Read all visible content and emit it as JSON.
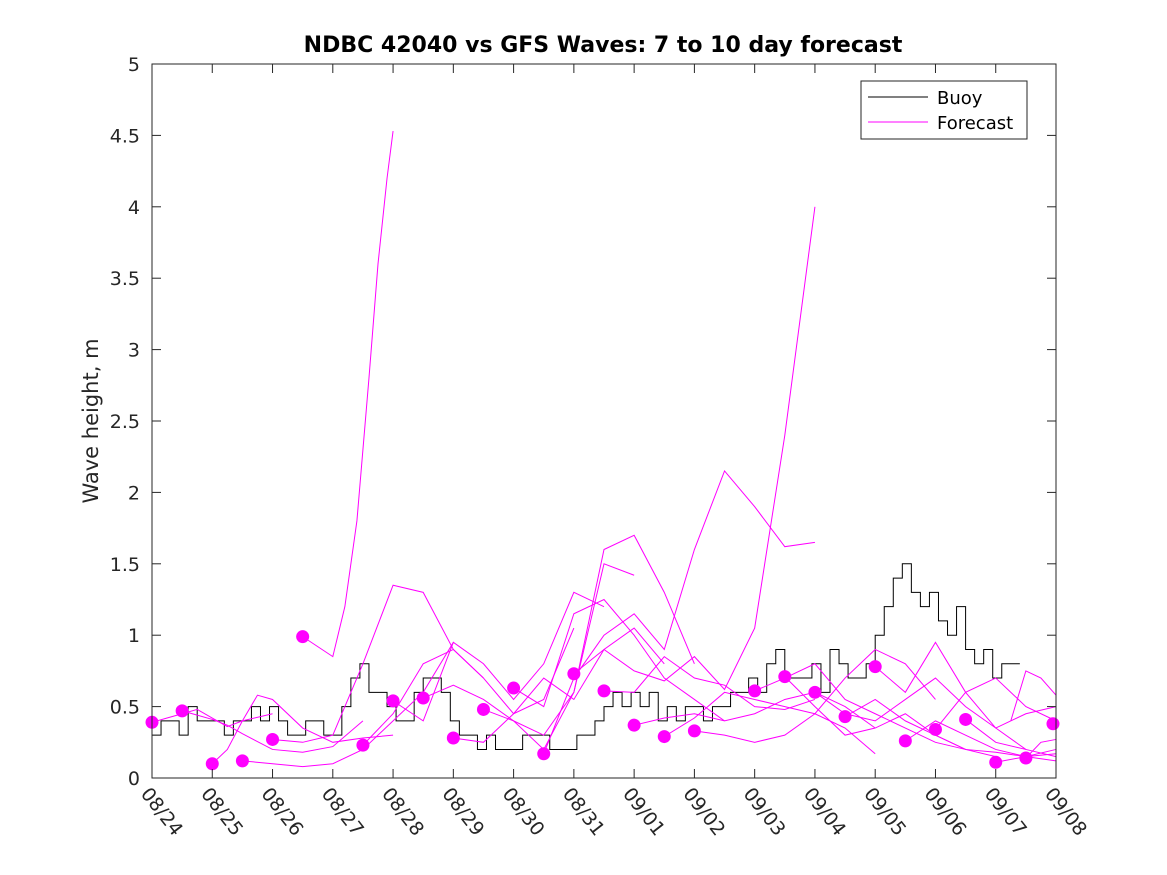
{
  "chart_data": {
    "type": "line",
    "title": "NDBC 42040 vs GFS Waves: 7 to 10 day forecast",
    "xlabel": "",
    "ylabel": "Wave height, m",
    "xlim": [
      0,
      15
    ],
    "ylim": [
      0,
      5
    ],
    "yticks": [
      "0",
      "0.5",
      "1",
      "1.5",
      "2",
      "2.5",
      "3",
      "3.5",
      "4",
      "4.5",
      "5"
    ],
    "xticks": [
      "08/24",
      "08/25",
      "08/26",
      "08/27",
      "08/28",
      "08/29",
      "08/30",
      "08/31",
      "09/01",
      "09/02",
      "09/03",
      "09/04",
      "09/05",
      "09/06",
      "09/07",
      "09/08"
    ],
    "x_units": "days since 08/24",
    "grid": false,
    "legend": {
      "position": "top-right",
      "entries": [
        "Buoy",
        "Forecast"
      ]
    },
    "colors": {
      "buoy": "#000000",
      "forecast": "#ff00ff"
    },
    "buoy": {
      "name": "Buoy",
      "x": [
        0,
        0.15,
        0.3,
        0.45,
        0.6,
        0.75,
        0.9,
        1.05,
        1.2,
        1.35,
        1.5,
        1.65,
        1.8,
        1.95,
        2.1,
        2.25,
        2.4,
        2.55,
        2.7,
        2.85,
        3.0,
        3.15,
        3.3,
        3.45,
        3.6,
        3.75,
        3.9,
        4.05,
        4.2,
        4.35,
        4.5,
        4.65,
        4.8,
        4.95,
        5.1,
        5.25,
        5.4,
        5.55,
        5.7,
        5.85,
        6.0,
        6.15,
        6.3,
        6.45,
        6.6,
        6.75,
        6.9,
        7.05,
        7.2,
        7.35,
        7.5,
        7.65,
        7.8,
        7.95,
        8.1,
        8.25,
        8.4,
        8.55,
        8.7,
        8.85,
        9.0,
        9.15,
        9.3,
        9.45,
        9.6,
        9.75,
        9.9,
        10.05,
        10.2,
        10.35,
        10.5,
        10.65,
        10.8,
        10.95,
        11.1,
        11.25,
        11.4,
        11.55,
        11.7,
        11.85,
        12.0,
        12.15,
        12.3,
        12.45,
        12.6,
        12.75,
        12.9,
        13.05,
        13.2,
        13.35,
        13.5,
        13.65,
        13.8,
        13.95,
        14.1,
        14.25
      ],
      "values": [
        0.3,
        0.4,
        0.4,
        0.3,
        0.5,
        0.4,
        0.4,
        0.4,
        0.3,
        0.4,
        0.4,
        0.5,
        0.4,
        0.5,
        0.4,
        0.3,
        0.3,
        0.4,
        0.4,
        0.3,
        0.3,
        0.5,
        0.7,
        0.8,
        0.6,
        0.6,
        0.5,
        0.4,
        0.4,
        0.6,
        0.7,
        0.7,
        0.6,
        0.4,
        0.3,
        0.3,
        0.2,
        0.3,
        0.2,
        0.2,
        0.2,
        0.3,
        0.3,
        0.3,
        0.2,
        0.2,
        0.2,
        0.3,
        0.3,
        0.4,
        0.5,
        0.6,
        0.5,
        0.6,
        0.5,
        0.6,
        0.4,
        0.5,
        0.4,
        0.5,
        0.5,
        0.4,
        0.5,
        0.5,
        0.6,
        0.6,
        0.7,
        0.6,
        0.8,
        0.9,
        0.7,
        0.7,
        0.7,
        0.8,
        0.6,
        0.9,
        0.8,
        0.7,
        0.7,
        0.8,
        1.0,
        1.2,
        1.4,
        1.5,
        1.3,
        1.2,
        1.3,
        1.1,
        1.0,
        1.2,
        0.9,
        0.8,
        0.9,
        0.7,
        0.8,
        0.8
      ]
    },
    "forecast": [
      {
        "name": "Forecast",
        "x": [
          0,
          0.25,
          0.5,
          0.75,
          1.0,
          1.25,
          1.5,
          2.0
        ],
        "values": [
          0.39,
          0.42,
          0.45,
          0.48,
          0.42,
          0.36,
          0.4,
          0.45
        ]
      },
      {
        "name": "Forecast",
        "x": [
          0.5,
          0.75,
          1.0,
          1.25,
          1.5,
          2.0,
          2.5,
          3.0,
          3.5
        ],
        "values": [
          0.47,
          0.44,
          0.41,
          0.37,
          0.31,
          0.2,
          0.18,
          0.22,
          0.4
        ]
      },
      {
        "name": "Forecast",
        "x": [
          1.0,
          1.25,
          1.5,
          1.75,
          2.0,
          2.5,
          3.0,
          3.5,
          4.0
        ],
        "values": [
          0.1,
          0.2,
          0.4,
          0.58,
          0.55,
          0.35,
          0.25,
          0.28,
          0.3
        ]
      },
      {
        "name": "Forecast",
        "x": [
          1.5,
          2.0,
          2.5,
          3.0,
          3.5,
          4.0,
          4.5,
          5.0
        ],
        "values": [
          0.12,
          0.1,
          0.08,
          0.1,
          0.2,
          0.4,
          0.6,
          0.95
        ]
      },
      {
        "name": "Forecast",
        "x": [
          2.0,
          2.5,
          3.0,
          3.5,
          4.0,
          4.5,
          5.0,
          5.5
        ],
        "values": [
          0.27,
          0.25,
          0.3,
          0.8,
          1.35,
          1.3,
          0.9,
          0.7
        ]
      },
      {
        "name": "Forecast",
        "x": [
          2.5,
          3.0,
          3.2,
          3.4,
          3.6,
          3.75,
          3.9,
          4.0
        ],
        "values": [
          0.99,
          0.85,
          1.2,
          1.8,
          2.8,
          3.6,
          4.2,
          4.53
        ]
      },
      {
        "name": "Forecast",
        "x": [
          3.5,
          4.0,
          4.5,
          5.0,
          5.5,
          6.0,
          6.5,
          7.0
        ],
        "values": [
          0.23,
          0.45,
          0.8,
          0.9,
          0.7,
          0.45,
          0.55,
          1.05
        ]
      },
      {
        "name": "Forecast",
        "x": [
          4.0,
          4.5,
          5.0,
          5.5,
          6.0,
          6.5,
          7.0,
          7.5
        ],
        "values": [
          0.54,
          0.4,
          0.95,
          0.8,
          0.55,
          0.8,
          1.3,
          1.2
        ]
      },
      {
        "name": "Forecast",
        "x": [
          4.5,
          5.0,
          5.5,
          6.0,
          6.5,
          7.0,
          7.5,
          8.0
        ],
        "values": [
          0.56,
          0.65,
          0.55,
          0.4,
          0.2,
          0.6,
          1.5,
          1.42
        ]
      },
      {
        "name": "Forecast",
        "x": [
          5.0,
          5.5,
          6.0,
          6.5,
          7.0,
          7.5,
          8.0,
          8.5
        ],
        "values": [
          0.28,
          0.25,
          0.45,
          0.7,
          0.55,
          0.9,
          1.05,
          0.8
        ]
      },
      {
        "name": "Forecast",
        "x": [
          5.5,
          6.0,
          6.5,
          7.0,
          7.5,
          8.0,
          8.5,
          9.0
        ],
        "values": [
          0.48,
          0.4,
          0.3,
          0.6,
          1.6,
          1.7,
          1.3,
          0.8
        ]
      },
      {
        "name": "Forecast",
        "x": [
          6.0,
          6.5,
          7.0,
          7.5,
          8.0,
          8.5,
          9.0,
          9.5
        ],
        "values": [
          0.63,
          0.5,
          1.15,
          1.25,
          1.0,
          0.7,
          0.55,
          0.4
        ]
      },
      {
        "name": "Forecast",
        "x": [
          6.5,
          7.0,
          7.5,
          8.0,
          8.5,
          9.0,
          9.5,
          10.0,
          10.5,
          11.0
        ],
        "values": [
          0.17,
          0.7,
          1.0,
          1.15,
          0.9,
          1.6,
          2.15,
          1.9,
          1.62,
          1.65
        ]
      },
      {
        "name": "Forecast",
        "x": [
          7.0,
          7.5,
          8.0,
          8.5,
          9.0,
          9.5,
          10.0,
          10.5,
          11.0
        ],
        "values": [
          0.73,
          0.9,
          0.75,
          0.68,
          0.85,
          0.62,
          1.05,
          2.4,
          4.0
        ]
      },
      {
        "name": "Forecast",
        "x": [
          7.5,
          8.0,
          8.5,
          9.0,
          9.5,
          10.0,
          10.5,
          11.0
        ],
        "values": [
          0.61,
          0.6,
          0.85,
          0.7,
          0.65,
          0.5,
          0.48,
          0.55
        ]
      },
      {
        "name": "Forecast",
        "x": [
          8.0,
          8.5,
          9.0,
          9.5,
          10.0,
          10.5,
          11.0,
          11.5,
          12.0
        ],
        "values": [
          0.37,
          0.42,
          0.45,
          0.4,
          0.45,
          0.55,
          0.6,
          0.5,
          0.35
        ]
      },
      {
        "name": "Forecast",
        "x": [
          8.5,
          9.0,
          9.5,
          10.0,
          10.5,
          11.0,
          11.5,
          12.0
        ],
        "values": [
          0.29,
          0.42,
          0.6,
          0.55,
          0.5,
          0.45,
          0.35,
          0.17
        ]
      },
      {
        "name": "Forecast",
        "x": [
          9.0,
          9.5,
          10.0,
          10.5,
          11.0,
          11.5,
          12.0,
          12.5,
          13.0
        ],
        "values": [
          0.33,
          0.3,
          0.25,
          0.3,
          0.45,
          0.7,
          0.9,
          0.8,
          0.55
        ]
      },
      {
        "name": "Forecast",
        "x": [
          10.0,
          10.5,
          11.0,
          11.5,
          12.0,
          12.5,
          13.0,
          13.5
        ],
        "values": [
          0.61,
          0.7,
          0.8,
          0.55,
          0.45,
          0.35,
          0.25,
          0.2
        ]
      },
      {
        "name": "Forecast",
        "x": [
          10.5,
          11.0,
          11.5,
          12.0,
          12.5,
          13.0,
          13.5,
          14.0
        ],
        "values": [
          0.71,
          0.5,
          0.3,
          0.35,
          0.45,
          0.3,
          0.2,
          0.15
        ]
      },
      {
        "name": "Forecast",
        "x": [
          11.0,
          11.5,
          12.0,
          12.5,
          13.0,
          13.5,
          14.0,
          14.5
        ],
        "values": [
          0.6,
          0.45,
          0.4,
          0.55,
          0.7,
          0.5,
          0.35,
          0.2
        ]
      },
      {
        "name": "Forecast",
        "x": [
          11.5,
          12.0,
          12.5,
          13.0,
          13.5,
          14.0,
          14.5,
          15.0
        ],
        "values": [
          0.43,
          0.55,
          0.4,
          0.3,
          0.2,
          0.18,
          0.15,
          0.17
        ]
      },
      {
        "name": "Forecast",
        "x": [
          12.0,
          12.5,
          13.0,
          13.5,
          14.0,
          14.5,
          15.0
        ],
        "values": [
          0.78,
          0.6,
          0.95,
          0.6,
          0.35,
          0.45,
          0.5
        ]
      },
      {
        "name": "Forecast",
        "x": [
          12.5,
          13.0,
          13.5,
          14.0,
          14.5,
          15.0
        ],
        "values": [
          0.26,
          0.4,
          0.3,
          0.2,
          0.15,
          0.2
        ]
      },
      {
        "name": "Forecast",
        "x": [
          13.0,
          13.5,
          14.0,
          14.5,
          15.0
        ],
        "values": [
          0.34,
          0.6,
          0.7,
          0.5,
          0.4
        ]
      },
      {
        "name": "Forecast",
        "x": [
          13.5,
          14.0,
          14.5,
          15.0
        ],
        "values": [
          0.41,
          0.25,
          0.2,
          0.15
        ]
      },
      {
        "name": "Forecast",
        "x": [
          14.0,
          14.5,
          15.0
        ],
        "values": [
          0.11,
          0.15,
          0.12
        ]
      },
      {
        "name": "Forecast",
        "x": [
          14.5,
          14.75,
          15.0
        ],
        "values": [
          0.14,
          0.25,
          0.27
        ]
      },
      {
        "name": "Forecast",
        "x": [
          14.25,
          14.5,
          14.75,
          15.0
        ],
        "values": [
          0.4,
          0.75,
          0.7,
          0.58
        ]
      }
    ],
    "forecast_markers": {
      "x": [
        0.0,
        0.5,
        1.0,
        1.5,
        2.0,
        2.5,
        3.5,
        4.0,
        4.5,
        5.0,
        5.5,
        6.0,
        6.5,
        7.0,
        7.5,
        8.0,
        8.5,
        9.0,
        10.0,
        10.5,
        11.0,
        11.5,
        12.0,
        12.5,
        13.0,
        13.5,
        14.0,
        14.5,
        14.95
      ],
      "values": [
        0.39,
        0.47,
        0.1,
        0.12,
        0.27,
        0.99,
        0.23,
        0.54,
        0.56,
        0.28,
        0.48,
        0.63,
        0.17,
        0.73,
        0.61,
        0.37,
        0.29,
        0.33,
        0.61,
        0.71,
        0.6,
        0.43,
        0.78,
        0.26,
        0.34,
        0.41,
        0.11,
        0.14,
        0.38
      ]
    }
  }
}
